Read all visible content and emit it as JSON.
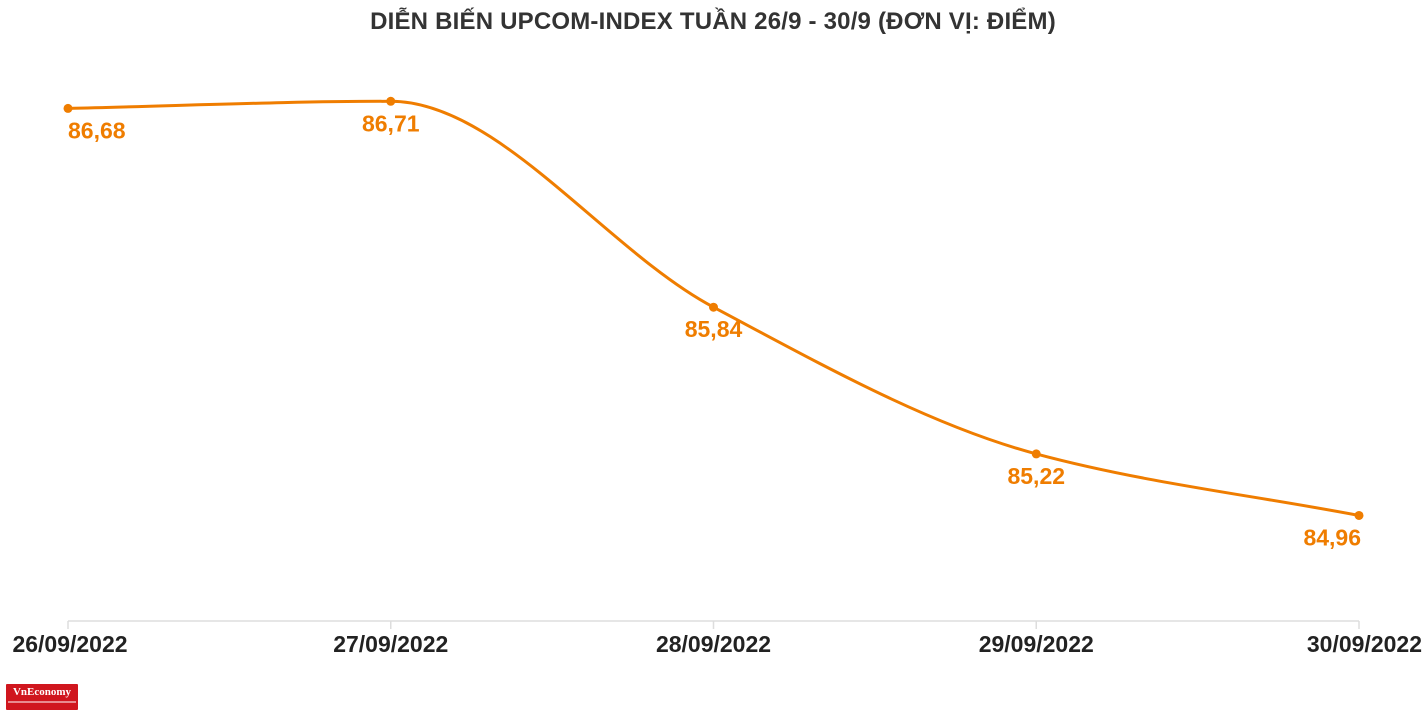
{
  "title": "DIỄN BIẾN UPCOM-INDEX TUẦN 26/9 - 30/9 (ĐƠN VỊ: ĐIỂM)",
  "logo": {
    "text": "VnEconomy"
  },
  "colors": {
    "series": "#ef7d00",
    "axis": "#dddddd",
    "tick_label": "#222222",
    "title": "#333333",
    "logo_bg": "#d0161e"
  },
  "chart_data": {
    "type": "line",
    "title": "DIỄN BIẾN UPCOM-INDEX TUẦN 26/9 - 30/9 (ĐƠN VỊ: ĐIỂM)",
    "xlabel": "",
    "ylabel": "",
    "categories": [
      "26/09/2022",
      "27/09/2022",
      "28/09/2022",
      "29/09/2022",
      "30/09/2022"
    ],
    "values": [
      86.68,
      86.71,
      85.84,
      85.22,
      84.96
    ],
    "data_labels": [
      "86,68",
      "86,71",
      "85,84",
      "85,22",
      "84,96"
    ],
    "ylim": [
      84.7,
      86.8
    ],
    "grid": false,
    "smooth": true,
    "legend": "none"
  }
}
